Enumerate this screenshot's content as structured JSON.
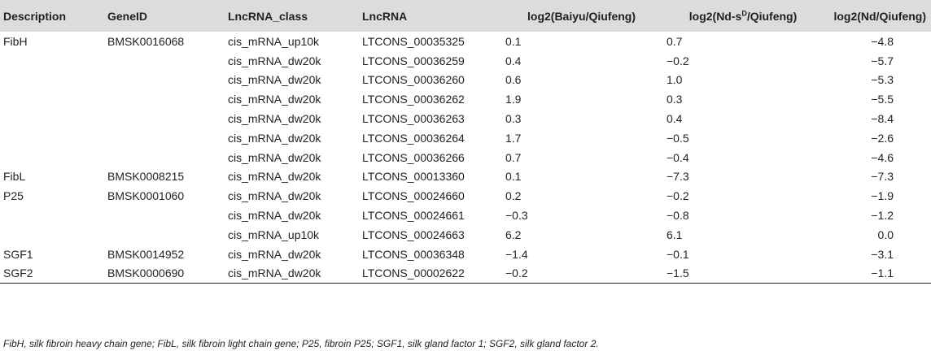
{
  "table": {
    "headers": [
      "Description",
      "GeneID",
      "LncRNA_class",
      "LncRNA",
      "log2(Baiyu/Qiufeng)",
      "log2(Nd-s",
      "log2(Nd/Qiufeng)"
    ],
    "header_nds_sup": "D",
    "header_nds_tail": "/Qiufeng)",
    "rows": [
      [
        "FibH",
        "BMSK0016068",
        "cis_mRNA_up10k",
        "LTCONS_00035325",
        "0.1",
        "0.7",
        "−4.8"
      ],
      [
        "",
        "",
        "cis_mRNA_dw20k",
        "LTCONS_00036259",
        "0.4",
        "−0.2",
        "−5.7"
      ],
      [
        "",
        "",
        "cis_mRNA_dw20k",
        "LTCONS_00036260",
        "0.6",
        "1.0",
        "−5.3"
      ],
      [
        "",
        "",
        "cis_mRNA_dw20k",
        "LTCONS_00036262",
        "1.9",
        "0.3",
        "−5.5"
      ],
      [
        "",
        "",
        "cis_mRNA_dw20k",
        "LTCONS_00036263",
        "0.3",
        "0.4",
        "−8.4"
      ],
      [
        "",
        "",
        "cis_mRNA_dw20k",
        "LTCONS_00036264",
        "1.7",
        "−0.5",
        "−2.6"
      ],
      [
        "",
        "",
        "cis_mRNA_dw20k",
        "LTCONS_00036266",
        "0.7",
        "−0.4",
        "−4.6"
      ],
      [
        "FibL",
        "BMSK0008215",
        "cis_mRNA_dw20k",
        "LTCONS_00013360",
        "0.1",
        "−7.3",
        "−7.3"
      ],
      [
        "P25",
        "BMSK0001060",
        "cis_mRNA_dw20k",
        "LTCONS_00024660",
        "0.2",
        "−0.2",
        "−1.9"
      ],
      [
        "",
        "",
        "cis_mRNA_dw20k",
        "LTCONS_00024661",
        "−0.3",
        "−0.8",
        "−1.2"
      ],
      [
        "",
        "",
        "cis_mRNA_up10k",
        "LTCONS_00024663",
        "6.2",
        "6.1",
        "0.0"
      ],
      [
        "SGF1",
        "BMSK0014952",
        "cis_mRNA_dw20k",
        "LTCONS_00036348",
        "−1.4",
        "−0.1",
        "−3.1"
      ],
      [
        "SGF2",
        "BMSK0000690",
        "cis_mRNA_dw20k",
        "LTCONS_00002622",
        "−0.2",
        "−1.5",
        "−1.1"
      ]
    ]
  },
  "footnote": "FibH, silk fibroin heavy chain gene; FibL, silk fibroin light chain gene; P25, fibroin P25; SGF1, silk gland factor 1; SGF2, silk gland factor 2."
}
